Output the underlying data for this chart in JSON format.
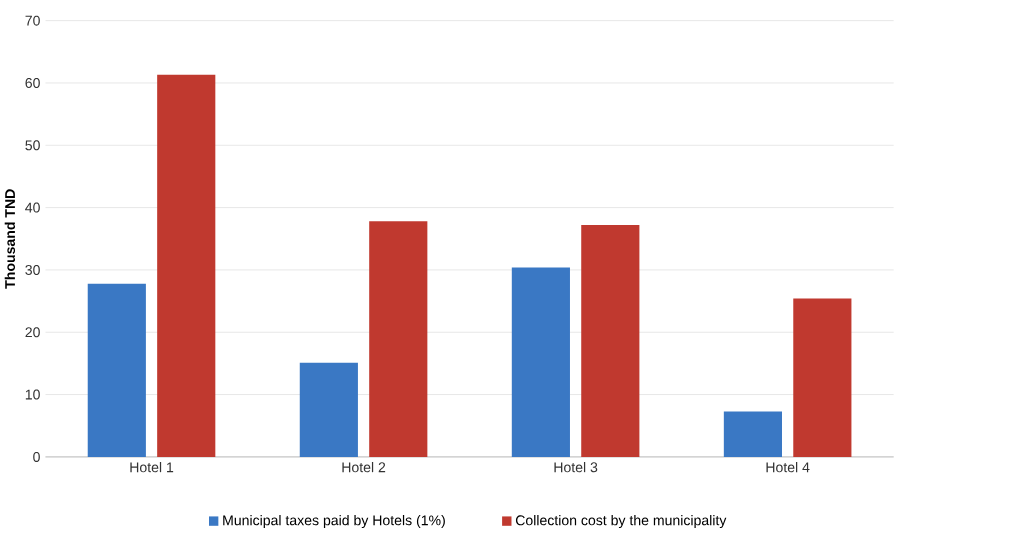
{
  "chart_data": {
    "type": "bar",
    "ylabel": "Thousand TND",
    "categories": [
      "Hotel 1",
      "Hotel 2",
      "Hotel 3",
      "Hotel 4"
    ],
    "series": [
      {
        "name": "Municipal taxes paid by Hotels (1%)",
        "color": "#3a78c4",
        "values": [
          27.8,
          15.1,
          30.4,
          7.3
        ]
      },
      {
        "name": "Collection cost by the municipality",
        "color": "#c0392f",
        "values": [
          61.3,
          37.8,
          37.2,
          25.4
        ]
      }
    ],
    "ylim": [
      0,
      70
    ],
    "yticks": [
      0,
      10,
      20,
      30,
      40,
      50,
      60,
      70
    ],
    "grid": "y",
    "legend": "bottom"
  }
}
